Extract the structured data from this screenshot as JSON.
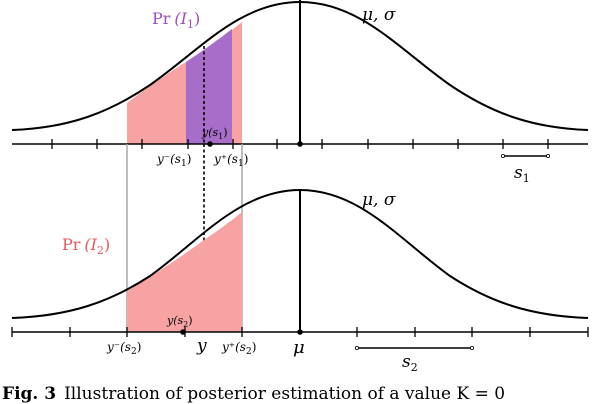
{
  "top": {
    "region_label_prefix": "Pr",
    "region_label_var": "(I",
    "region_label_sub": "1",
    "region_label_close": ")",
    "curve_params": "μ, σ",
    "y_point": "y(s",
    "y_point_sub": "1",
    "y_point_close": ")",
    "y_minus": "y⁻(s",
    "y_minus_sub": "1",
    "y_minus_close": ")",
    "y_plus": "y⁺(s",
    "y_plus_sub": "1",
    "y_plus_close": ")",
    "scale_label": "s",
    "scale_sub": "1"
  },
  "bottom": {
    "region_label_prefix": "Pr",
    "region_label_var": "(I",
    "region_label_sub": "2",
    "region_label_close": ")",
    "curve_params": "μ, σ",
    "y_point": "y(s",
    "y_point_sub": "2",
    "y_point_close": ")",
    "y_minus": "y⁻(s",
    "y_minus_sub": "2",
    "y_minus_close": ")",
    "y_plus": "y⁺(s",
    "y_plus_sub": "2",
    "y_plus_close": ")",
    "y_label": "y",
    "mu_label": "μ",
    "scale_label": "s",
    "scale_sub": "2"
  },
  "caption": {
    "prefix": "Fig. 3",
    "text": "Illustration of posterior estimation of a value K = 0"
  },
  "colors": {
    "red_region": "#f7a3a3",
    "purple_region": "#a86cc9",
    "purple_text": "#9b4fb8",
    "red_text": "#e8585d"
  }
}
